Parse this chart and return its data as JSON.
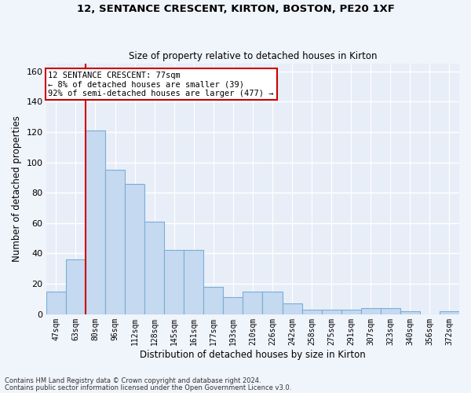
{
  "title1": "12, SENTANCE CRESCENT, KIRTON, BOSTON, PE20 1XF",
  "title2": "Size of property relative to detached houses in Kirton",
  "xlabel": "Distribution of detached houses by size in Kirton",
  "ylabel": "Number of detached properties",
  "categories": [
    "47sqm",
    "63sqm",
    "80sqm",
    "96sqm",
    "112sqm",
    "128sqm",
    "145sqm",
    "161sqm",
    "177sqm",
    "193sqm",
    "210sqm",
    "226sqm",
    "242sqm",
    "258sqm",
    "275sqm",
    "291sqm",
    "307sqm",
    "323sqm",
    "340sqm",
    "356sqm",
    "372sqm"
  ],
  "values": [
    15,
    36,
    121,
    95,
    86,
    61,
    42,
    42,
    18,
    11,
    15,
    15,
    7,
    3,
    3,
    3,
    4,
    4,
    2,
    0,
    2
  ],
  "bar_color": "#c5d9f0",
  "bar_edge_color": "#7aaed6",
  "bg_color": "#e8eef8",
  "grid_color": "#ffffff",
  "vline_color": "#cc0000",
  "vline_x_index": 2,
  "annotation_text": "12 SENTANCE CRESCENT: 77sqm\n← 8% of detached houses are smaller (39)\n92% of semi-detached houses are larger (477) →",
  "annotation_box_color": "#ffffff",
  "annotation_box_edge_color": "#cc0000",
  "footnote1": "Contains HM Land Registry data © Crown copyright and database right 2024.",
  "footnote2": "Contains public sector information licensed under the Open Government Licence v3.0.",
  "ylim": [
    0,
    165
  ],
  "yticks": [
    0,
    20,
    40,
    60,
    80,
    100,
    120,
    140,
    160
  ],
  "fig_width": 6.0,
  "fig_height": 5.0,
  "dpi": 100
}
